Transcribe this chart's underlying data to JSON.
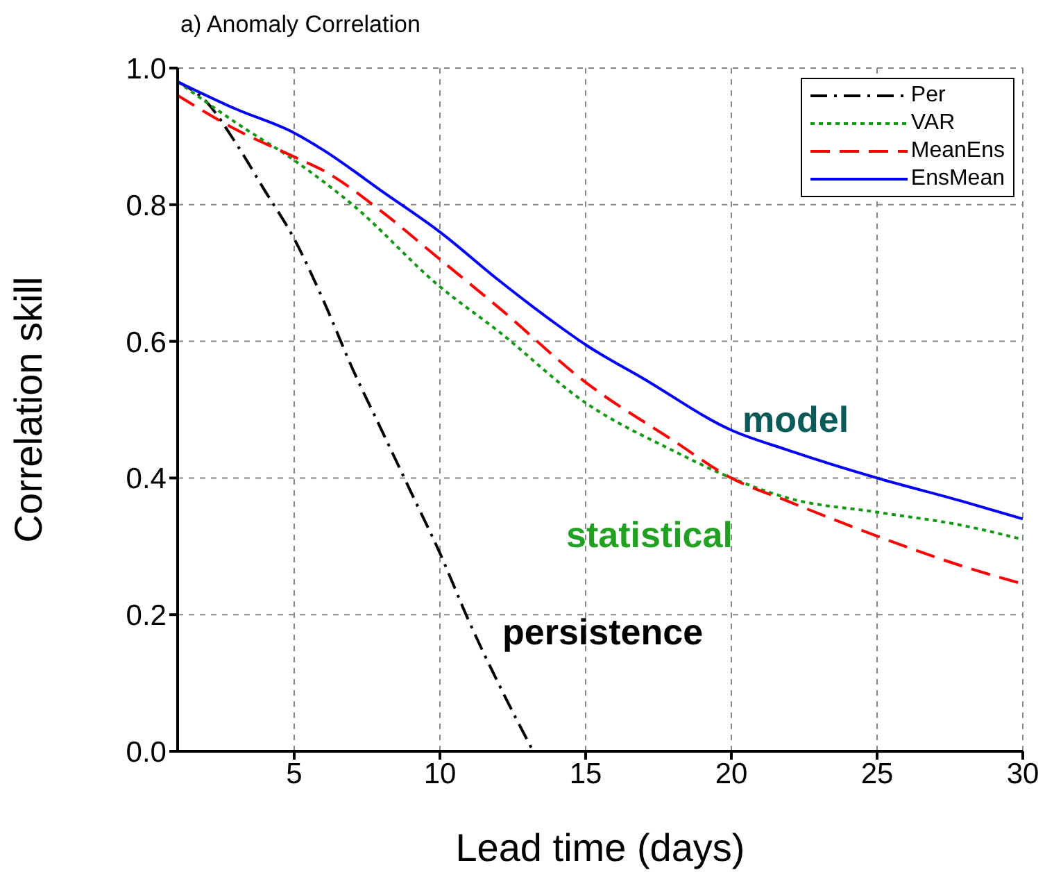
{
  "chart_data": {
    "type": "line",
    "title": "a) Anomaly Correlation",
    "xlabel": "Lead time (days)",
    "ylabel": "Correlation skill",
    "xlim": [
      1,
      30
    ],
    "xticks": [
      5,
      10,
      15,
      20,
      25,
      30
    ],
    "ylim": [
      0,
      1
    ],
    "yticks": [
      {
        "value": 0,
        "label": "0.0"
      },
      {
        "value": 0.2,
        "label": "0.2"
      },
      {
        "value": 0.4,
        "label": "0.4"
      },
      {
        "value": 0.6,
        "label": "0.6"
      },
      {
        "value": 0.8,
        "label": "0.8"
      },
      {
        "value": 1,
        "label": "1.0"
      }
    ],
    "grid": true,
    "legend": "top right",
    "marker": "none",
    "series": [
      {
        "name": "Per",
        "color": "#000000",
        "line_style": "dashdot",
        "x": [
          1,
          2,
          3,
          4,
          5,
          6,
          7,
          8,
          9,
          10,
          11,
          12,
          13.2
        ],
        "values": [
          0.98,
          0.95,
          0.89,
          0.82,
          0.75,
          0.66,
          0.56,
          0.47,
          0.38,
          0.29,
          0.19,
          0.1,
          0
        ]
      },
      {
        "name": "VAR",
        "color": "#119911",
        "line_style": "dotted",
        "x": [
          1,
          3,
          5,
          7,
          10,
          12,
          15,
          18,
          20,
          22,
          25,
          28,
          30
        ],
        "values": [
          0.98,
          0.92,
          0.865,
          0.8,
          0.68,
          0.615,
          0.51,
          0.44,
          0.4,
          0.37,
          0.35,
          0.33,
          0.31
        ]
      },
      {
        "name": "MeanEns",
        "color": "#ff0000",
        "line_style": "dashed",
        "x": [
          1,
          3,
          5,
          6,
          8,
          10,
          12,
          15,
          18,
          20,
          22,
          25,
          28,
          30
        ],
        "values": [
          0.96,
          0.91,
          0.87,
          0.85,
          0.79,
          0.72,
          0.65,
          0.54,
          0.455,
          0.4,
          0.365,
          0.315,
          0.27,
          0.245
        ]
      },
      {
        "name": "EnsMean",
        "color": "#0000ff",
        "line_style": "solid",
        "x": [
          1,
          3,
          5,
          6,
          8,
          10,
          12,
          14,
          15,
          17,
          20,
          22,
          25,
          28,
          30
        ],
        "values": [
          0.98,
          0.94,
          0.905,
          0.88,
          0.82,
          0.76,
          0.69,
          0.625,
          0.595,
          0.545,
          0.47,
          0.44,
          0.4,
          0.365,
          0.34
        ]
      }
    ],
    "annotations": [
      "model",
      "statistical",
      "persistence"
    ]
  }
}
